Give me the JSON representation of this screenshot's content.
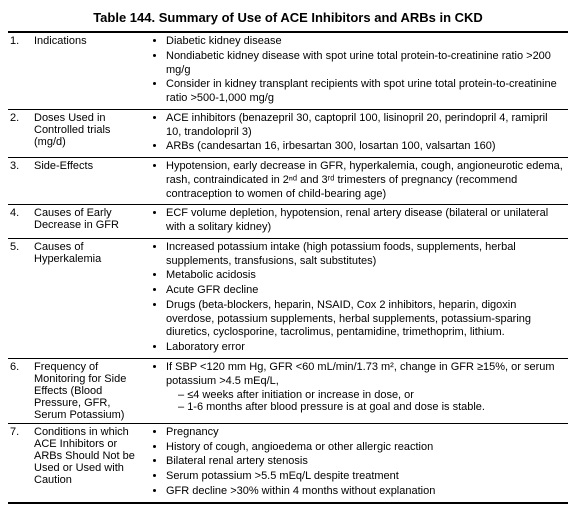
{
  "title": "Table 144. Summary of Use of ACE Inhibitors and ARBs in CKD",
  "rows": [
    {
      "num": "1.",
      "label": "Indications",
      "bullets": [
        "Diabetic kidney disease",
        "Nondiabetic kidney disease with spot urine total protein-to-creatinine ratio >200 mg/g",
        "Consider in kidney transplant recipients with spot urine total protein-to-creatinine ratio >500-1,000 mg/g"
      ]
    },
    {
      "num": "2.",
      "label": "Doses Used in Controlled trials (mg/d)",
      "bullets": [
        "ACE inhibitors (benazepril 30, captopril 100, lisinopril 20, perindopril 4, ramipril 10, trandolopril 3)",
        "ARBs (candesartan 16, irbesartan 300, losartan 100, valsartan 160)"
      ]
    },
    {
      "num": "3.",
      "label": "Side-Effects",
      "bullets": [
        "Hypotension, early decrease in GFR, hyperkalemia, cough, angioneurotic edema, rash, contraindicated in 2ⁿᵈ and 3ʳᵈ trimesters of pregnancy (recommend contraception to women of child-bearing age)"
      ]
    },
    {
      "num": "4.",
      "label": "Causes of Early Decrease in GFR",
      "bullets": [
        "ECF volume depletion, hypotension, renal artery disease (bilateral or unilateral with a solitary kidney)"
      ]
    },
    {
      "num": "5.",
      "label": "Causes of Hyperkalemia",
      "bullets": [
        "Increased potassium intake (high potassium foods, supplements, herbal supplements, transfusions, salt substitutes)",
        "Metabolic acidosis",
        "Acute GFR decline",
        "Drugs (beta-blockers, heparin, NSAID, Cox 2 inhibitors, heparin, digoxin overdose, potassium supplements, herbal supplements, potassium-sparing diuretics, cyclosporine, tacrolimus, pentamidine, trimethoprim, lithium.",
        "Laboratory error"
      ]
    },
    {
      "num": "6.",
      "label": "Frequency of Monitoring for Side Effects (Blood Pressure, GFR, Serum Potassium)",
      "bullets": [
        "If SBP <120 mm Hg, GFR <60 mL/min/1.73 m², change in GFR ≥15%, or serum potassium >4.5 mEq/L,"
      ],
      "dashes": [
        "≤4 weeks after initiation or increase in dose, or",
        "1-6 months after blood pressure is at goal and dose is stable."
      ]
    },
    {
      "num": "7.",
      "label": "Conditions in which ACE Inhibitors or ARBs Should Not be Used or Used with Caution",
      "bullets": [
        "Pregnancy",
        "History of cough, angioedema or other allergic reaction",
        "Bilateral renal artery stenosis",
        "Serum potassium >5.5 mEq/L despite treatment",
        "GFR decline >30% within 4 months without explanation"
      ]
    }
  ]
}
